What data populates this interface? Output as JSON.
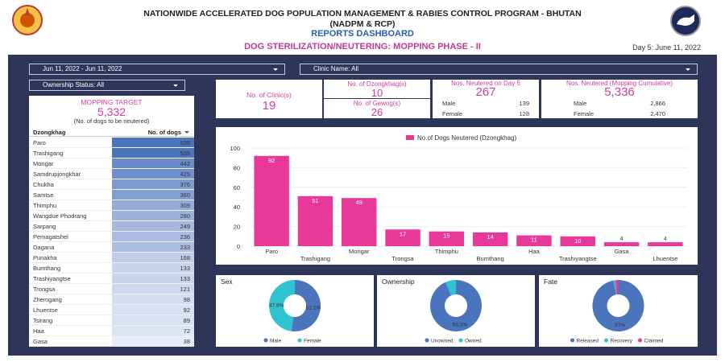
{
  "header": {
    "title_line1": "NATIONWIDE ACCELERATED DOG POPULATION MANAGEMENT & RABIES CONTROL PROGRAM - BHUTAN",
    "title_line2": "(NADPM & RCP)",
    "title_line3": "REPORTS DASHBOARD",
    "left_logo": "bhutan-emblem-icon",
    "right_logo": "dog-program-logo-icon"
  },
  "subheader": {
    "title": "DOG STERILIZATION/NEUTERING: MOPPING PHASE - II",
    "day": "Day 5: June 11, 2022"
  },
  "filters": {
    "date_range": "Jun 11, 2022 - Jun 11, 2022",
    "clinic": "Clinic Name: All",
    "ownership": "Ownership Status: All"
  },
  "target": {
    "label": "MOPPING TARGET",
    "value": "5,332",
    "sub": "(No. of dogs to be neutered)"
  },
  "kpis": {
    "clinics_label": "No. of Clinic(s)",
    "clinics_value": "19",
    "dzongkhag_label": "No. of Dzongkhag(s)",
    "dzongkhag_value": "10",
    "gewog_label": "No. of Gewog(s)",
    "gewog_value": "26",
    "day5_label": "Nos. Neutered on Day 5",
    "day5_value": "267",
    "day5_male_label": "Male",
    "day5_male": "139",
    "day5_female_label": "Female",
    "day5_female": "128",
    "cum_label": "Nos. Neutered (Mopping Cumulative)",
    "cum_value": "5,336",
    "cum_male_label": "Male",
    "cum_male": "2,866",
    "cum_female_label": "Female",
    "cum_female": "2,470"
  },
  "table": {
    "col1": "Dzongkhag",
    "col2": "No. of dogs",
    "rows": [
      {
        "name": "Paro",
        "value": "539"
      },
      {
        "name": "Trashigang",
        "value": "539"
      },
      {
        "name": "Mongar",
        "value": "442"
      },
      {
        "name": "Samdrupjongkhar",
        "value": "425"
      },
      {
        "name": "Chukha",
        "value": "376"
      },
      {
        "name": "Samtse",
        "value": "360"
      },
      {
        "name": "Thimphu",
        "value": "309"
      },
      {
        "name": "Wangdue Phodrang",
        "value": "280"
      },
      {
        "name": "Sarpang",
        "value": "249"
      },
      {
        "name": "Pemagatshel",
        "value": "236"
      },
      {
        "name": "Dagana",
        "value": "233"
      },
      {
        "name": "Punakha",
        "value": "168"
      },
      {
        "name": "Bumthang",
        "value": "133"
      },
      {
        "name": "Trashiyangtse",
        "value": "133"
      },
      {
        "name": "Trongsa",
        "value": "121"
      },
      {
        "name": "Zhemgang",
        "value": "98"
      },
      {
        "name": "Lhuentse",
        "value": "92"
      },
      {
        "name": "Tsirang",
        "value": "89"
      },
      {
        "name": "Haa",
        "value": "72"
      },
      {
        "name": "Gasa",
        "value": "38"
      }
    ]
  },
  "chart_data": [
    {
      "type": "bar",
      "title": "",
      "legend": "No.of Dogs Neutered (Dzongkhag)",
      "categories": [
        "Paro",
        "Trashigang",
        "Mongar",
        "Trongsa",
        "Thimphu",
        "Bumthang",
        "Haa",
        "Trashiyangtse",
        "Gasa",
        "Lhuentse"
      ],
      "values": [
        92,
        51,
        49,
        17,
        15,
        14,
        11,
        10,
        4,
        4
      ],
      "ylim": [
        0,
        100
      ],
      "yticks": [
        "0",
        "20",
        "40",
        "60",
        "80",
        "100"
      ],
      "color": "#e8399b"
    },
    {
      "type": "pie",
      "title": "Sex",
      "labels": [
        "Male",
        "Female"
      ],
      "values": [
        52.1,
        47.9
      ],
      "value_labels": [
        "52.1%",
        "47.9%"
      ],
      "colors": [
        "#4a74bb",
        "#2ec3cf"
      ]
    },
    {
      "type": "pie",
      "title": "Ownership",
      "labels": [
        "Unowned",
        "Owned"
      ],
      "values": [
        93.3,
        6.7
      ],
      "value_labels": [
        "93.3%",
        ""
      ],
      "colors": [
        "#4a74bb",
        "#2ec3cf"
      ]
    },
    {
      "type": "pie",
      "title": "Fate",
      "labels": [
        "Released",
        "Recovery",
        "Claimed"
      ],
      "values": [
        97,
        1,
        2
      ],
      "value_labels": [
        "97%",
        "",
        ""
      ],
      "colors": [
        "#4a74bb",
        "#2ec3cf",
        "#e8399b",
        "#f06a2a"
      ]
    }
  ]
}
